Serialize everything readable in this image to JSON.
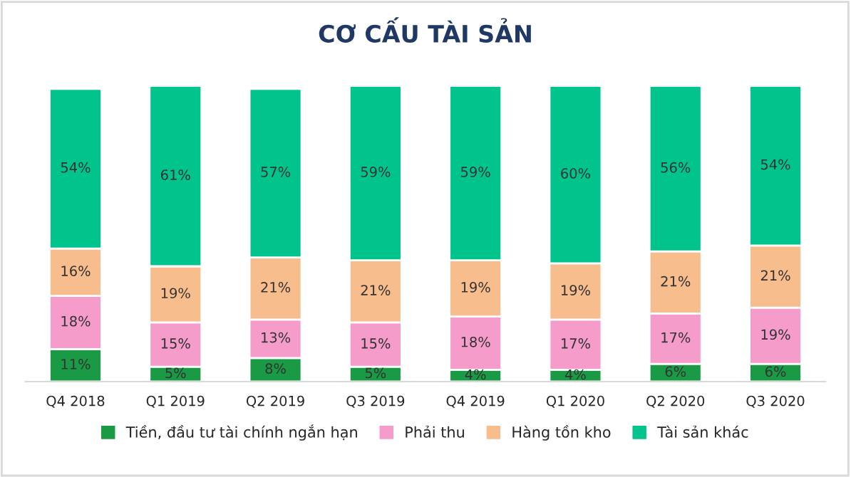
{
  "chart_data": {
    "type": "bar",
    "title": "CƠ CẤU TÀI SẢN",
    "stacked": true,
    "legend": "bottom",
    "tick_labels": "x",
    "grid": false,
    "categories": [
      "Q4 2018",
      "Q1 2019",
      "Q2 2019",
      "Q3 2019",
      "Q4 2019",
      "Q1 2020",
      "Q2 2020",
      "Q3 2020"
    ],
    "series": [
      {
        "name": "Tiền, đầu tư tài chính ngắn hạn",
        "color": "#1a9a44",
        "values": [
          11,
          5,
          8,
          5,
          4,
          4,
          6,
          6
        ],
        "value_labels": [
          "11%",
          "5%",
          "8%",
          "5%",
          "4%",
          "4%",
          "6%",
          "6%"
        ]
      },
      {
        "name": "Phải thu",
        "color": "#f59ccb",
        "values": [
          18,
          15,
          13,
          15,
          18,
          17,
          17,
          19
        ],
        "value_labels": [
          "18%",
          "15%",
          "13%",
          "15%",
          "18%",
          "17%",
          "17%",
          "19%"
        ]
      },
      {
        "name": "Hàng tồn kho",
        "color": "#f8bd8c",
        "values": [
          16,
          19,
          21,
          21,
          19,
          19,
          21,
          21
        ],
        "value_labels": [
          "16%",
          "19%",
          "21%",
          "21%",
          "19%",
          "19%",
          "21%",
          "21%"
        ]
      },
      {
        "name": "Tài sản khác",
        "color": "#00c48c",
        "values": [
          54,
          61,
          57,
          59,
          59,
          60,
          56,
          54
        ],
        "value_labels": [
          "54%",
          "61%",
          "57%",
          "59%",
          "59%",
          "60%",
          "56%",
          "54%"
        ]
      }
    ]
  }
}
